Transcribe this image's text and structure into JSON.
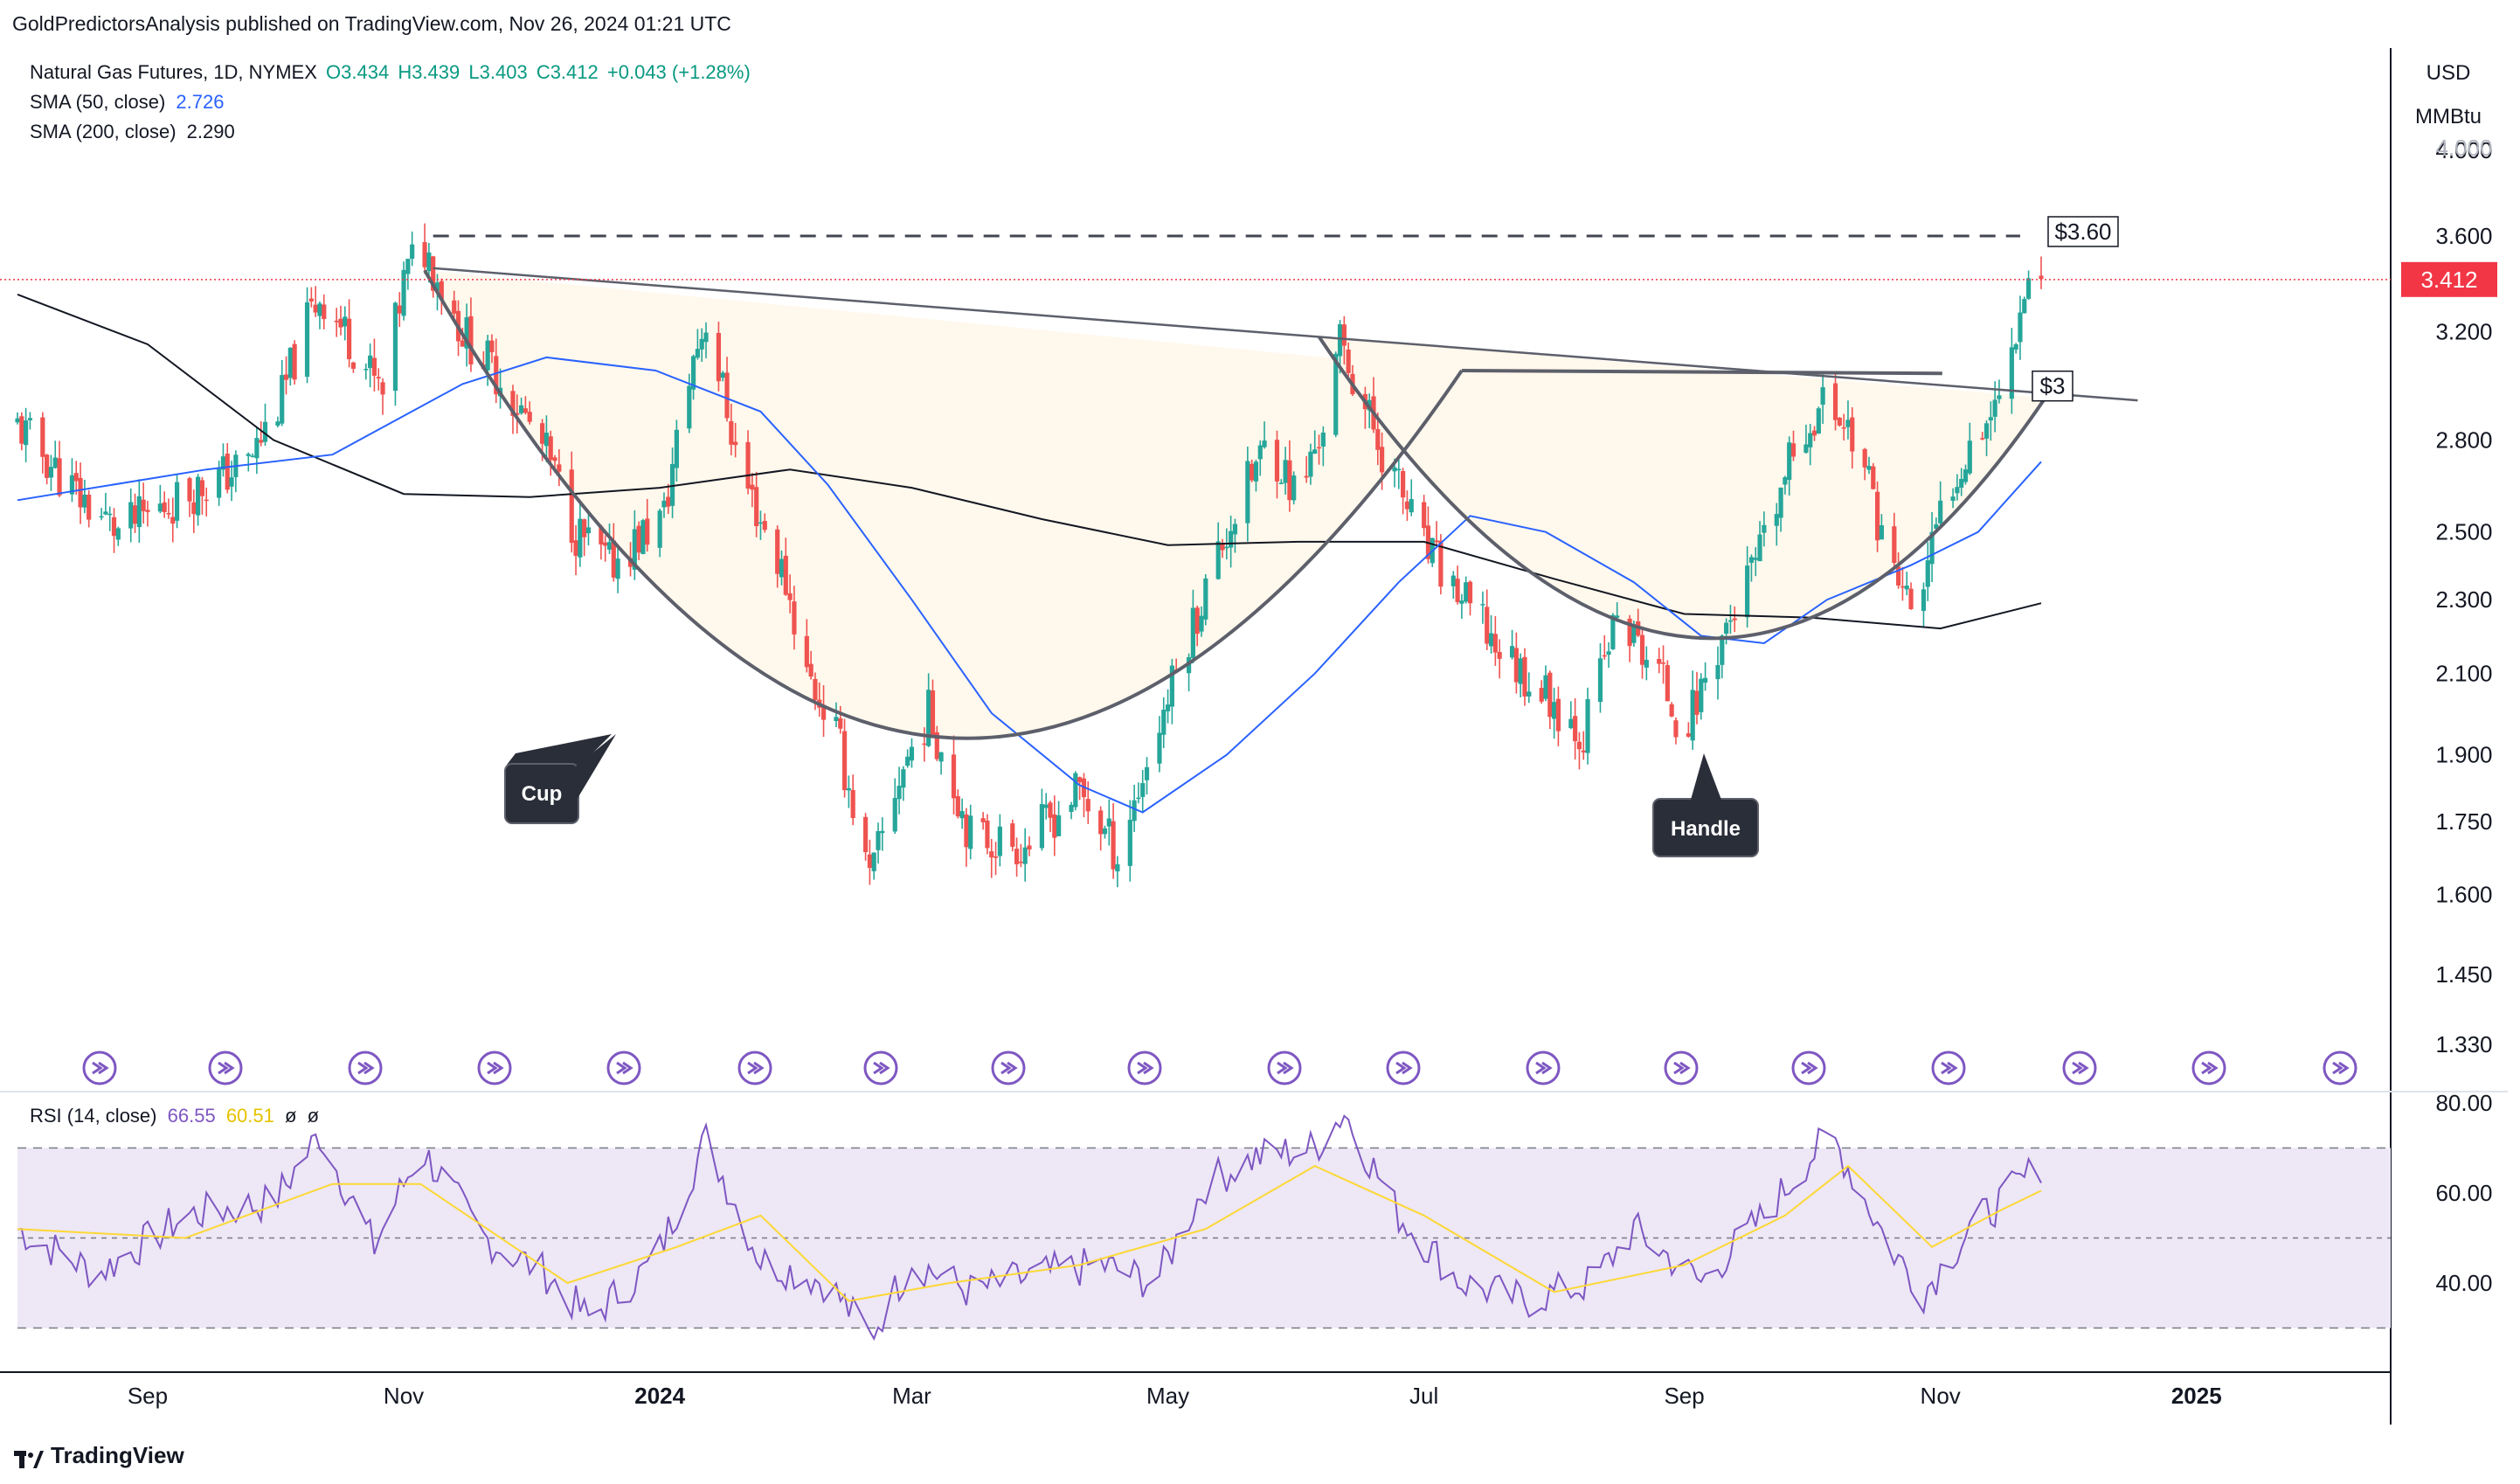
{
  "header": {
    "publisher_line": "GoldPredictorsAnalysis published on TradingView.com, Nov 26, 2024 01:21 UTC"
  },
  "legend": {
    "symbol": "Natural Gas Futures, 1D, NYMEX",
    "open": "O3.434",
    "high": "H3.439",
    "low": "L3.403",
    "close": "C3.412",
    "change": "+0.043 (+1.28%)",
    "sma50_label": "SMA (50, close)",
    "sma50_value": "2.726",
    "sma200_label": "SMA (200, close)",
    "sma200_value": "2.290",
    "rsi_label": "RSI (14, close)",
    "rsi_value": "66.55",
    "rsi_ma_value": "60.51",
    "rsi_extra1": "ø",
    "rsi_extra2": "ø"
  },
  "units": {
    "currency": "USD",
    "measure": "MMBtu"
  },
  "footer": {
    "brand": "TradingView"
  },
  "colors": {
    "up": "#26a69a",
    "down": "#ef5350",
    "sma50": "#2962ff",
    "sma200": "#131722",
    "rsi": "#7e57c2",
    "rsi_ma": "#fdd835",
    "rsi_band": "#ede7f6",
    "cup_fill": "#fff8ec",
    "event_icon": "#7e57c2",
    "price_tag": "#f23645"
  },
  "chart_data": [
    {
      "type": "candlestick",
      "title": "Natural Gas Futures, 1D, NYMEX",
      "y_scale": "log",
      "y_ticks": [
        "4.000",
        "3.600",
        "3.200",
        "2.800",
        "2.500",
        "2.300",
        "2.100",
        "1.900",
        "1.750",
        "1.600",
        "1.450",
        "1.330"
      ],
      "x_ticks": [
        "Sep",
        "Nov",
        "2024",
        "Mar",
        "May",
        "Jul",
        "Sep",
        "Nov",
        "2025"
      ],
      "x_range": [
        "2023-08-01",
        "2025-02-15"
      ],
      "last_price": "3.412",
      "price_path": [
        [
          "2023-08-01",
          2.85
        ],
        [
          "2023-08-15",
          2.62
        ],
        [
          "2023-08-25",
          2.5
        ],
        [
          "2023-09-10",
          2.62
        ],
        [
          "2023-09-25",
          2.72
        ],
        [
          "2023-10-03",
          2.95
        ],
        [
          "2023-10-08",
          3.2
        ],
        [
          "2023-10-12",
          3.35
        ],
        [
          "2023-10-20",
          3.15
        ],
        [
          "2023-10-27",
          2.95
        ],
        [
          "2023-11-01",
          3.4
        ],
        [
          "2023-11-05",
          3.58
        ],
        [
          "2023-11-15",
          3.2
        ],
        [
          "2023-11-25",
          3.0
        ],
        [
          "2023-12-05",
          2.75
        ],
        [
          "2023-12-12",
          2.5
        ],
        [
          "2023-12-20",
          2.4
        ],
        [
          "2024-01-02",
          2.55
        ],
        [
          "2024-01-09",
          3.1
        ],
        [
          "2024-01-12",
          3.25
        ],
        [
          "2024-01-20",
          2.7
        ],
        [
          "2024-01-31",
          2.35
        ],
        [
          "2024-02-05",
          2.1
        ],
        [
          "2024-02-12",
          1.95
        ],
        [
          "2024-02-20",
          1.62
        ],
        [
          "2024-02-27",
          1.85
        ],
        [
          "2024-03-05",
          2.0
        ],
        [
          "2024-03-15",
          1.72
        ],
        [
          "2024-03-28",
          1.7
        ],
        [
          "2024-04-10",
          1.82
        ],
        [
          "2024-04-19",
          1.68
        ],
        [
          "2024-04-25",
          1.85
        ],
        [
          "2024-05-03",
          2.1
        ],
        [
          "2024-05-15",
          2.5
        ],
        [
          "2024-05-25",
          2.8
        ],
        [
          "2024-06-01",
          2.6
        ],
        [
          "2024-06-08",
          2.9
        ],
        [
          "2024-06-11",
          3.15
        ],
        [
          "2024-06-20",
          2.8
        ],
        [
          "2024-07-01",
          2.45
        ],
        [
          "2024-07-10",
          2.3
        ],
        [
          "2024-07-20",
          2.15
        ],
        [
          "2024-07-30",
          2.05
        ],
        [
          "2024-08-08",
          1.95
        ],
        [
          "2024-08-16",
          2.25
        ],
        [
          "2024-08-26",
          2.1
        ],
        [
          "2024-09-01",
          1.95
        ],
        [
          "2024-09-10",
          2.2
        ],
        [
          "2024-09-20",
          2.45
        ],
        [
          "2024-09-28",
          2.8
        ],
        [
          "2024-10-05",
          2.95
        ],
        [
          "2024-10-12",
          2.8
        ],
        [
          "2024-10-20",
          2.4
        ],
        [
          "2024-10-26",
          2.25
        ],
        [
          "2024-11-02",
          2.6
        ],
        [
          "2024-11-08",
          2.8
        ],
        [
          "2024-11-15",
          2.95
        ],
        [
          "2024-11-20",
          3.3
        ],
        [
          "2024-11-22",
          3.45
        ],
        [
          "2024-11-25",
          3.412
        ]
      ],
      "sma50_path": [
        [
          "2023-08-01",
          2.6
        ],
        [
          "2023-09-15",
          2.7
        ],
        [
          "2023-10-15",
          2.75
        ],
        [
          "2023-11-15",
          3.0
        ],
        [
          "2023-12-05",
          3.1
        ],
        [
          "2023-12-31",
          3.05
        ],
        [
          "2024-01-25",
          2.9
        ],
        [
          "2024-02-10",
          2.65
        ],
        [
          "2024-03-01",
          2.3
        ],
        [
          "2024-03-20",
          2.0
        ],
        [
          "2024-04-10",
          1.83
        ],
        [
          "2024-04-25",
          1.77
        ],
        [
          "2024-05-15",
          1.9
        ],
        [
          "2024-06-05",
          2.1
        ],
        [
          "2024-06-25",
          2.35
        ],
        [
          "2024-07-12",
          2.55
        ],
        [
          "2024-07-30",
          2.5
        ],
        [
          "2024-08-20",
          2.35
        ],
        [
          "2024-09-05",
          2.2
        ],
        [
          "2024-09-20",
          2.18
        ],
        [
          "2024-10-05",
          2.3
        ],
        [
          "2024-10-25",
          2.4
        ],
        [
          "2024-11-10",
          2.5
        ],
        [
          "2024-11-25",
          2.726
        ]
      ],
      "sma200_path": [
        [
          "2023-08-01",
          3.35
        ],
        [
          "2023-09-01",
          3.15
        ],
        [
          "2023-10-01",
          2.8
        ],
        [
          "2023-11-01",
          2.62
        ],
        [
          "2023-12-01",
          2.61
        ],
        [
          "2024-01-01",
          2.64
        ],
        [
          "2024-02-01",
          2.7
        ],
        [
          "2024-03-01",
          2.64
        ],
        [
          "2024-04-01",
          2.54
        ],
        [
          "2024-05-01",
          2.46
        ],
        [
          "2024-06-01",
          2.47
        ],
        [
          "2024-07-01",
          2.47
        ],
        [
          "2024-08-01",
          2.36
        ],
        [
          "2024-09-01",
          2.26
        ],
        [
          "2024-10-01",
          2.25
        ],
        [
          "2024-11-01",
          2.22
        ],
        [
          "2024-11-25",
          2.29
        ]
      ],
      "annotations": {
        "resistance_label": "$3.60",
        "neckline_label": "$3",
        "cup_label": "Cup",
        "handle_label": "Handle"
      }
    },
    {
      "type": "line",
      "title": "RSI (14, close)",
      "y_ticks": [
        "80.00",
        "60.00",
        "40.00"
      ],
      "band": [
        30,
        70
      ],
      "midline": 50,
      "rsi_path": [
        [
          "2023-08-01",
          52
        ],
        [
          "2023-08-20",
          42
        ],
        [
          "2023-09-10",
          55
        ],
        [
          "2023-10-01",
          58
        ],
        [
          "2023-10-12",
          73
        ],
        [
          "2023-10-25",
          48
        ],
        [
          "2023-11-05",
          70
        ],
        [
          "2023-11-20",
          50
        ],
        [
          "2023-12-05",
          42
        ],
        [
          "2023-12-15",
          32
        ],
        [
          "2023-12-31",
          45
        ],
        [
          "2024-01-12",
          72
        ],
        [
          "2024-01-25",
          45
        ],
        [
          "2024-02-10",
          40
        ],
        [
          "2024-02-20",
          28
        ],
        [
          "2024-03-01",
          45
        ],
        [
          "2024-03-15",
          38
        ],
        [
          "2024-04-01",
          42
        ],
        [
          "2024-04-15",
          44
        ],
        [
          "2024-04-28",
          40
        ],
        [
          "2024-05-10",
          62
        ],
        [
          "2024-05-22",
          68
        ],
        [
          "2024-06-05",
          70
        ],
        [
          "2024-06-12",
          78
        ],
        [
          "2024-06-25",
          55
        ],
        [
          "2024-07-10",
          40
        ],
        [
          "2024-07-25",
          36
        ],
        [
          "2024-08-10",
          40
        ],
        [
          "2024-08-20",
          52
        ],
        [
          "2024-09-05",
          40
        ],
        [
          "2024-09-20",
          55
        ],
        [
          "2024-10-01",
          68
        ],
        [
          "2024-10-06",
          73
        ],
        [
          "2024-10-20",
          48
        ],
        [
          "2024-10-28",
          38
        ],
        [
          "2024-11-08",
          52
        ],
        [
          "2024-11-20",
          62
        ],
        [
          "2024-11-25",
          66.55
        ]
      ],
      "rsi_ma_path": [
        [
          "2023-08-01",
          52
        ],
        [
          "2023-09-10",
          50
        ],
        [
          "2023-10-15",
          62
        ],
        [
          "2023-11-05",
          62
        ],
        [
          "2023-12-10",
          40
        ],
        [
          "2024-01-05",
          48
        ],
        [
          "2024-01-25",
          55
        ],
        [
          "2024-02-15",
          36
        ],
        [
          "2024-03-10",
          40
        ],
        [
          "2024-04-10",
          44
        ],
        [
          "2024-05-10",
          52
        ],
        [
          "2024-06-05",
          66
        ],
        [
          "2024-07-01",
          55
        ],
        [
          "2024-08-01",
          38
        ],
        [
          "2024-09-01",
          44
        ],
        [
          "2024-09-25",
          55
        ],
        [
          "2024-10-10",
          66
        ],
        [
          "2024-10-30",
          48
        ],
        [
          "2024-11-15",
          56
        ],
        [
          "2024-11-25",
          60.51
        ]
      ]
    }
  ]
}
